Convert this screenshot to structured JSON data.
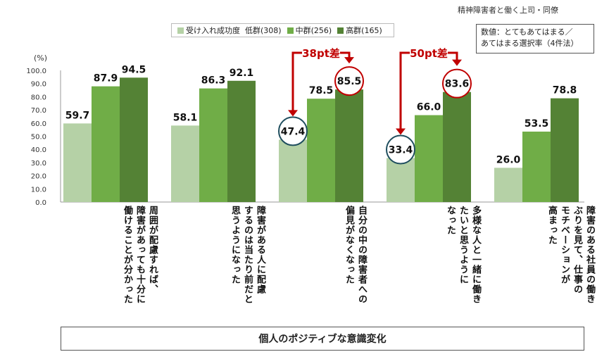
{
  "chart_data": {
    "type": "bar",
    "title": "個人のポジティブな意識変化",
    "subtitle": "精神障害者と働く上司・同僚",
    "note_lines": [
      "数値：とてもあてはまる／",
      "あてはまる選択率（4件法）"
    ],
    "ylabel": "(%)",
    "ylim": [
      0,
      100
    ],
    "yticks": [
      "0.0",
      "10.0",
      "20.0",
      "30.0",
      "40.0",
      "50.0",
      "60.0",
      "70.0",
      "80.0",
      "90.0",
      "100.0"
    ],
    "legend_prefix": "受け入れ成功度",
    "categories": [
      [
        "周囲が配慮すれば、",
        "障害があっても十分に",
        "働けることが分かった"
      ],
      [
        "障害がある人に配慮",
        "するのは当たり前だと",
        "思うようになった"
      ],
      [
        "自分の中の障害者への",
        "偏見がなくなった"
      ],
      [
        "多様な人と一緒に働き",
        "たいと思うように",
        "なった"
      ],
      [
        "障害のある社員の働き",
        "ぶりを見て、仕事の",
        "モチベーションが",
        "高まった"
      ]
    ],
    "series": [
      {
        "name": "低群(308)",
        "color": "#b5d1a6",
        "values": [
          59.7,
          58.1,
          47.4,
          33.4,
          26.0
        ],
        "labels": [
          "59.7",
          "58.1",
          "47.4",
          "33.4",
          "26.0"
        ]
      },
      {
        "name": "中群(256)",
        "color": "#70ad47",
        "values": [
          87.9,
          86.3,
          78.5,
          66.0,
          53.5
        ],
        "labels": [
          "87.9",
          "86.3",
          "78.5",
          "66.0",
          "53.5"
        ]
      },
      {
        "name": "高群(165)",
        "color": "#548235",
        "values": [
          94.5,
          92.1,
          85.5,
          83.6,
          78.8
        ],
        "labels": [
          "94.5",
          "92.1",
          "85.5",
          "83.6",
          "78.8"
        ]
      }
    ],
    "annotations": [
      {
        "category_index": 2,
        "text": "38pt差"
      },
      {
        "category_index": 3,
        "text": "50pt差"
      }
    ],
    "colors": {
      "circle_low": "#1f4e5e",
      "circle_high": "#c00000",
      "arrow": "#c00000"
    }
  }
}
